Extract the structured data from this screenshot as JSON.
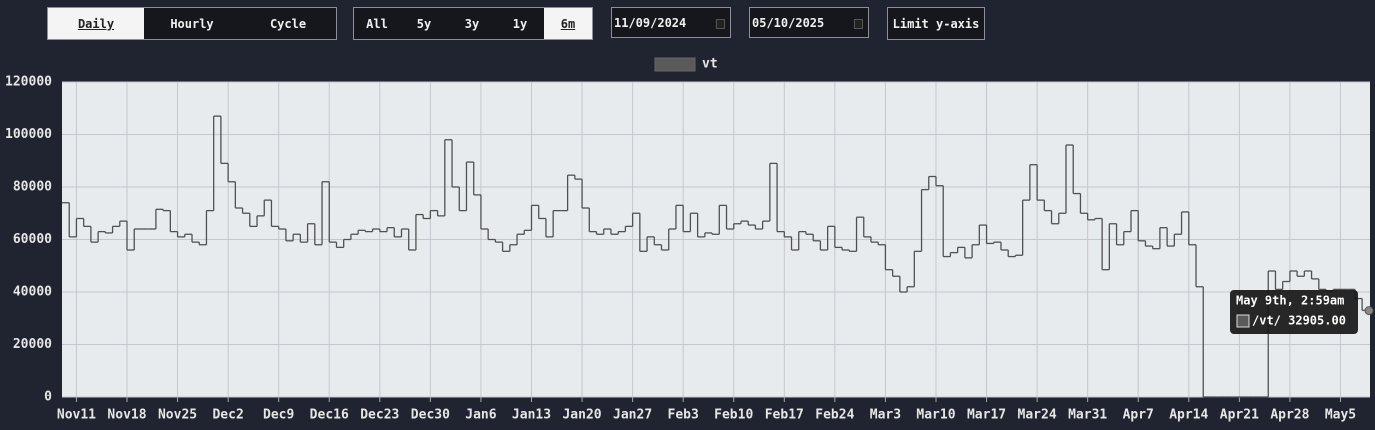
{
  "controls": {
    "modes": [
      "Daily",
      "Hourly",
      "Cycle"
    ],
    "selected_mode": 0,
    "periods": [
      "All",
      "5y",
      "3y",
      "1y",
      "6m"
    ],
    "selected_period": 4,
    "start_date": "11/09/2024",
    "end_date": "05/10/2025",
    "limit_button": "Limit y-axis"
  },
  "chart_data": {
    "type": "line",
    "step": true,
    "categories": [
      null,
      null,
      "Nov11",
      null,
      null,
      null,
      null,
      null,
      null,
      "Nov18",
      null,
      null,
      null,
      null,
      null,
      null,
      "Nov25",
      null,
      null,
      null,
      null,
      null,
      null,
      "Dec2",
      null,
      null,
      null,
      null,
      null,
      null,
      "Dec9",
      null,
      null,
      null,
      null,
      null,
      null,
      "Dec16",
      null,
      null,
      null,
      null,
      null,
      null,
      "Dec23",
      null,
      null,
      null,
      null,
      null,
      null,
      "Dec30",
      null,
      null,
      null,
      null,
      null,
      null,
      "Jan6",
      null,
      null,
      null,
      null,
      null,
      null,
      "Jan13",
      null,
      null,
      null,
      null,
      null,
      null,
      "Jan20",
      null,
      null,
      null,
      null,
      null,
      null,
      "Jan27",
      null,
      null,
      null,
      null,
      null,
      null,
      "Feb3",
      null,
      null,
      null,
      null,
      null,
      null,
      "Feb10",
      null,
      null,
      null,
      null,
      null,
      null,
      "Feb17",
      null,
      null,
      null,
      null,
      null,
      null,
      "Feb24",
      null,
      null,
      null,
      null,
      null,
      null,
      "Mar3",
      null,
      null,
      null,
      null,
      null,
      null,
      "Mar10",
      null,
      null,
      null,
      null,
      null,
      null,
      "Mar17",
      null,
      null,
      null,
      null,
      null,
      null,
      "Mar24",
      null,
      null,
      null,
      null,
      null,
      null,
      "Mar31",
      null,
      null,
      null,
      null,
      null,
      null,
      "Apr7",
      null,
      null,
      null,
      null,
      null,
      null,
      "Apr14",
      null,
      null,
      null,
      null,
      null,
      null,
      "Apr21",
      null,
      null,
      null,
      null,
      null,
      null,
      "Apr28",
      null,
      null,
      null,
      null,
      null,
      null,
      "May5",
      null,
      null,
      null,
      null
    ],
    "series": [
      {
        "name": "vt",
        "color": "#505050",
        "values": [
          74000,
          61000,
          68000,
          65000,
          59000,
          63000,
          62500,
          65000,
          67000,
          56000,
          64000,
          64000,
          64000,
          71500,
          71000,
          63000,
          61000,
          62000,
          59000,
          58000,
          71000,
          107000,
          89000,
          82000,
          72000,
          70000,
          65000,
          69000,
          75000,
          65000,
          64000,
          59500,
          62000,
          59000,
          66000,
          58000,
          82000,
          59000,
          57000,
          60000,
          62000,
          63500,
          63000,
          64000,
          63000,
          64500,
          61000,
          64000,
          56000,
          69500,
          68000,
          71000,
          69000,
          98000,
          80000,
          71000,
          89500,
          77000,
          64000,
          60000,
          59000,
          55500,
          58000,
          62000,
          63500,
          73000,
          68000,
          61000,
          71000,
          71000,
          84500,
          83000,
          72000,
          63000,
          62000,
          64000,
          62000,
          63000,
          65000,
          70000,
          55500,
          61000,
          58000,
          56000,
          64000,
          73000,
          63000,
          70000,
          61000,
          62500,
          62000,
          73000,
          64000,
          66000,
          67000,
          65500,
          64000,
          67000,
          89000,
          63000,
          61000,
          56000,
          63000,
          62000,
          59500,
          56000,
          65000,
          57000,
          56000,
          55500,
          68500,
          61000,
          59000,
          58000,
          48500,
          46000,
          40000,
          42000,
          55500,
          79000,
          84000,
          80500,
          53500,
          55000,
          57000,
          53000,
          58000,
          65500,
          58500,
          59000,
          56000,
          53500,
          54000,
          75000,
          88500,
          75000,
          71000,
          66000,
          70000,
          96000,
          77500,
          70000,
          67500,
          68000,
          48500,
          66000,
          58000,
          63000,
          71000,
          59500,
          57500,
          56500,
          64500,
          57500,
          62000,
          70500,
          58000,
          42000,
          0,
          0,
          0,
          0,
          0,
          0,
          0,
          0,
          0,
          48000,
          41000,
          44000,
          48000,
          46000,
          48000,
          45000,
          41000,
          40500,
          41000,
          41000,
          41000,
          37500,
          33000,
          32905
        ]
      }
    ],
    "ylim": [
      0,
      120000
    ],
    "yticks": [
      0,
      20000,
      40000,
      60000,
      80000,
      100000,
      120000
    ],
    "grid": true,
    "tooltip": {
      "title": "May 9th, 2:59am",
      "label": "/vt/ 32905.00"
    }
  }
}
